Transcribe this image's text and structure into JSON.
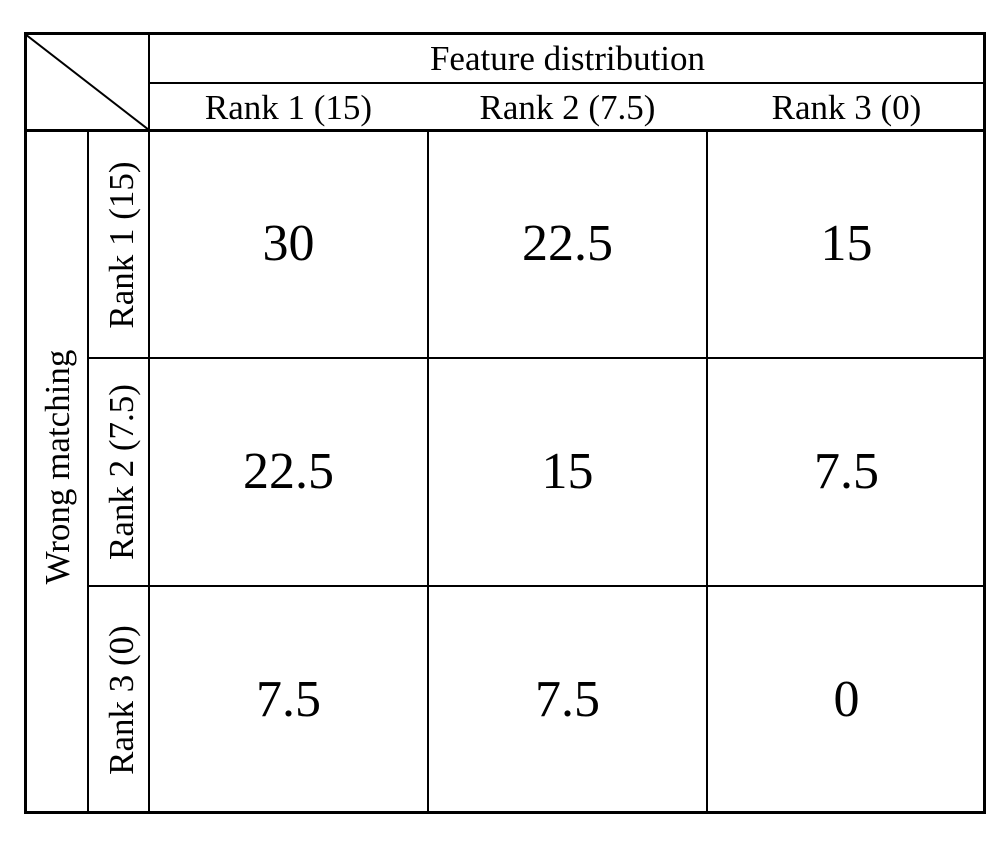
{
  "header": {
    "title": "Feature distribution",
    "columns": [
      "Rank 1 (15)",
      "Rank 2 (7.5)",
      "Rank 3 (0)"
    ]
  },
  "side": {
    "title": "Wrong matching",
    "rows": [
      "Rank 1 (15)",
      "Rank 2 (7.5)",
      "Rank 3 (0)"
    ]
  },
  "cells": [
    [
      "30",
      "22.5",
      "15"
    ],
    [
      "22.5",
      "15",
      "7.5"
    ],
    [
      "7.5",
      "7.5",
      "0"
    ]
  ]
}
